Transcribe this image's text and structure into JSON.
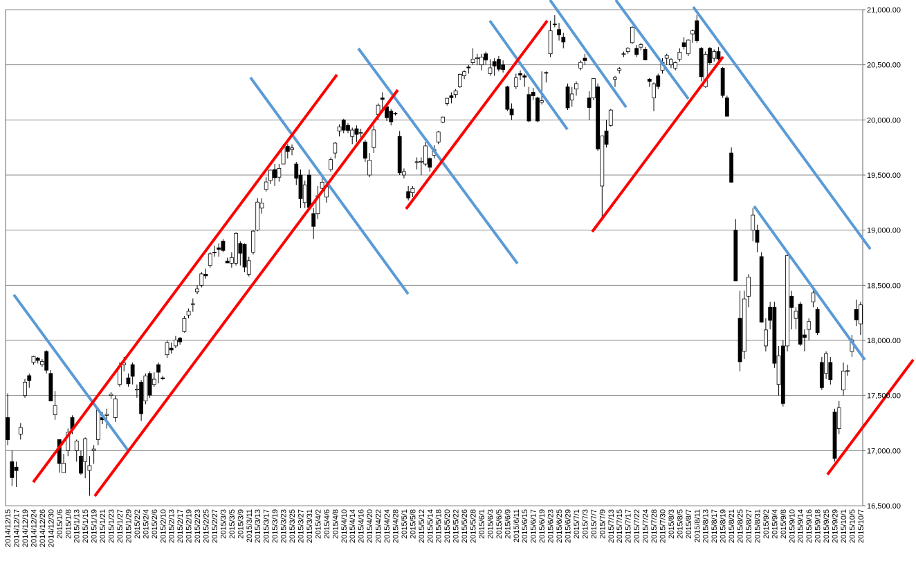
{
  "chart_data": {
    "type": "candlestick",
    "categories": [
      "2014/12/15",
      null,
      "2014/12/17",
      null,
      "2014/12/19",
      null,
      "2014/12/24",
      null,
      "2014/12/26",
      null,
      "2014/12/30",
      null,
      "2015/1/6",
      null,
      "2015/1/8",
      null,
      "2015/1/13",
      null,
      "2015/1/15",
      null,
      "2015/1/19",
      null,
      "2015/1/21",
      null,
      "2015/1/23",
      null,
      "2015/1/27",
      null,
      "2015/1/29",
      null,
      "2015/2/2",
      null,
      "2015/2/4",
      null,
      "2015/2/6",
      null,
      "2015/2/10",
      null,
      "2015/2/13",
      null,
      "2015/2/17",
      null,
      "2015/2/19",
      null,
      "2015/2/23",
      null,
      "2015/2/25",
      null,
      "2015/2/27",
      null,
      "2015/3/3",
      null,
      "2015/3/5",
      null,
      "2015/3/9",
      null,
      "2015/3/11",
      null,
      "2015/3/13",
      null,
      "2015/3/17",
      null,
      "2015/3/19",
      null,
      "2015/3/23",
      null,
      "2015/3/25",
      null,
      "2015/3/27",
      null,
      "2015/3/31",
      null,
      "2015/4/2",
      null,
      "2015/4/6",
      null,
      "2015/4/8",
      null,
      "2015/4/10",
      null,
      "2015/4/14",
      null,
      "2015/4/16",
      null,
      "2015/4/20",
      null,
      "2015/4/22",
      null,
      "2015/4/24",
      null,
      "2015/4/28",
      null,
      "2015/5/1",
      null,
      "2015/5/8",
      null,
      "2015/5/12",
      null,
      "2015/5/14",
      null,
      "2015/5/18",
      null,
      "2015/5/20",
      null,
      "2015/5/22",
      null,
      "2015/5/26",
      null,
      "2015/5/28",
      null,
      "2015/6/1",
      null,
      "2015/6/3",
      null,
      "2015/6/5",
      null,
      "2015/6/9",
      null,
      "2015/6/11",
      null,
      "2015/6/15",
      null,
      "2015/6/17",
      null,
      "2015/6/19",
      null,
      "2015/6/23",
      null,
      "2015/6/25",
      null,
      "2015/6/29",
      null,
      "2015/7/1",
      null,
      "2015/7/3",
      null,
      "2015/7/7",
      null,
      "2015/7/9",
      null,
      "2015/7/13",
      null,
      "2015/7/15",
      null,
      "2015/7/17",
      null,
      "2015/7/22",
      null,
      "2015/7/24",
      null,
      "2015/7/28",
      null,
      "2015/7/30",
      null,
      "2015/8/3",
      null,
      "2015/8/5",
      null,
      "2015/8/7",
      null,
      "2015/8/11",
      null,
      "2015/8/13",
      null,
      "2015/8/17",
      null,
      "2015/8/19",
      null,
      "2015/8/21",
      null,
      "2015/8/25",
      null,
      "2015/8/27",
      null,
      "2015/8/31",
      null,
      "2015/9/2",
      null,
      "2015/9/4",
      null,
      "2015/9/8",
      null,
      "2015/9/10",
      null,
      "2015/9/14",
      null,
      "2015/9/16",
      null,
      "2015/9/18",
      null,
      "2015/9/25",
      null,
      "2015/9/29",
      null,
      "2015/10/1",
      null,
      "2015/10/5",
      null,
      "2015/10/7"
    ],
    "open": [
      17300,
      16900,
      16850,
      17150,
      17500,
      17680,
      17800,
      17840,
      17780,
      17900,
      17700,
      17325,
      17100,
      16800,
      17000,
      17300,
      17000,
      16950,
      16900,
      16820,
      17000,
      17100,
      17300,
      17320,
      17500,
      17300,
      17600,
      17780,
      17660,
      17780,
      17550,
      17620,
      17450,
      17700,
      17600,
      17780,
      17660,
      17870,
      17930,
      17950,
      18020,
      18080,
      18230,
      18330,
      18440,
      18500,
      18600,
      18680,
      18800,
      18840,
      18900,
      18720,
      18700,
      18700,
      18880,
      18870,
      18600,
      18800,
      19000,
      19200,
      19370,
      19450,
      19550,
      19480,
      19600,
      19760,
      19730,
      19600,
      19500,
      19250,
      19500,
      19150,
      19150,
      19380,
      19300,
      19550,
      19700,
      19900,
      20000,
      19950,
      19850,
      19920,
      19880,
      19800,
      19500,
      19750,
      20050,
      20200,
      20120,
      20080,
      20060,
      19850,
      19500,
      19350,
      19340,
      19620,
      19620,
      19600,
      19650,
      19680,
      19800,
      19980,
      20150,
      20220,
      20230,
      20300,
      20400,
      20480,
      20520,
      20560,
      20500,
      20600,
      20420,
      20530,
      20550,
      20500,
      20300,
      20100,
      20300,
      20420,
      20400,
      20230,
      20250,
      20200,
      20160,
      20430,
      20600,
      20870,
      20820,
      20750,
      20300,
      20180,
      20280,
      20470,
      20560,
      20200,
      20200,
      20300,
      19400,
      19900,
      19950,
      20370,
      20450,
      20600,
      20620,
      20700,
      20650,
      20660,
      20640,
      20370,
      20200,
      20400,
      20450,
      20560,
      20500,
      20470,
      20550,
      20700,
      20600,
      20780,
      20900,
      20650,
      20300,
      20650,
      20560,
      20620,
      20470,
      20200,
      19700,
      19000,
      18200,
      17900,
      18400,
      19000,
      19000,
      18760,
      17950,
      18300,
      18300,
      17600,
      17950,
      17950,
      18400,
      18200,
      18330,
      18050,
      18100,
      18350,
      18280,
      17800,
      17700,
      17800,
      17350,
      17200,
      17550,
      17720,
      17900,
      18280,
      18150
    ],
    "high": [
      17520,
      17000,
      16900,
      17250,
      17650,
      17700,
      17860,
      17850,
      17830,
      17910,
      17730,
      17540,
      17100,
      16970,
      17200,
      17320,
      17100,
      17000,
      17120,
      16950,
      17050,
      17380,
      17350,
      17380,
      17530,
      17500,
      17800,
      17850,
      17700,
      17800,
      17600,
      17640,
      17700,
      17720,
      17710,
      17800,
      17680,
      18000,
      17980,
      18040,
      18030,
      18220,
      18290,
      18380,
      18500,
      18620,
      18650,
      18800,
      18860,
      18880,
      18920,
      18750,
      18800,
      18980,
      18900,
      18880,
      18760,
      19000,
      19290,
      19290,
      19480,
      19550,
      19600,
      19600,
      19780,
      19780,
      19778,
      19620,
      19550,
      19450,
      19550,
      19200,
      19400,
      19470,
      19420,
      19660,
      19800,
      19960,
      20010,
      19970,
      19930,
      19950,
      19920,
      19820,
      19700,
      19950,
      20150,
      20250,
      20150,
      20100,
      20070,
      19900,
      19560,
      19400,
      19400,
      19660,
      19660,
      19800,
      19660,
      19770,
      19900,
      20030,
      20200,
      20250,
      20280,
      20420,
      20450,
      20500,
      20650,
      20600,
      20600,
      20620,
      20550,
      20560,
      20580,
      20540,
      20310,
      20150,
      20420,
      20450,
      20420,
      20300,
      20290,
      20210,
      20440,
      20440,
      20900,
      20950,
      20880,
      20790,
      20330,
      20300,
      20350,
      20540,
      20600,
      20260,
      20380,
      20330,
      19860,
      20000,
      20100,
      20400,
      20480,
      20620,
      20660,
      20850,
      20680,
      20700,
      20660,
      20380,
      20340,
      20420,
      20560,
      20600,
      20560,
      20530,
      20650,
      20750,
      20730,
      20820,
      20950,
      20660,
      20620,
      20660,
      20640,
      20660,
      20480,
      20220,
      19750,
      19100,
      18450,
      18450,
      18600,
      19200,
      19050,
      18800,
      18200,
      18350,
      18350,
      17950,
      18000,
      18780,
      18450,
      18300,
      18350,
      18100,
      18200,
      18450,
      18300,
      17850,
      17900,
      17850,
      17380,
      17450,
      17800,
      17780,
      18050,
      18370,
      18350
    ],
    "low": [
      17050,
      16680,
      16670,
      17100,
      17480,
      17570,
      17780,
      17790,
      17760,
      17700,
      17450,
      17280,
      16800,
      16800,
      16950,
      17150,
      16900,
      16780,
      16750,
      16590,
      16880,
      17050,
      17240,
      17200,
      17470,
      17260,
      17580,
      17720,
      17580,
      17600,
      17480,
      17270,
      17420,
      17480,
      17580,
      17610,
      17640,
      17840,
      17880,
      17930,
      17960,
      18070,
      18200,
      18260,
      18420,
      18480,
      18560,
      18660,
      18760,
      18760,
      18800,
      18700,
      18660,
      18680,
      18680,
      18620,
      18580,
      18780,
      18990,
      19150,
      19350,
      19420,
      19400,
      19440,
      19600,
      19650,
      19680,
      19410,
      19200,
      19200,
      19206,
      18920,
      19100,
      19350,
      19250,
      19530,
      19650,
      19850,
      19880,
      19880,
      19780,
      19800,
      19830,
      19620,
      19480,
      19700,
      20000,
      20100,
      19990,
      19950,
      20040,
      19500,
      19470,
      19270,
      19300,
      19550,
      19500,
      19580,
      19530,
      19650,
      19780,
      19970,
      20130,
      20150,
      20200,
      20290,
      20370,
      20420,
      20500,
      20500,
      20450,
      20500,
      20400,
      20400,
      20440,
      20430,
      20080,
      20000,
      20280,
      20360,
      20300,
      19980,
      20180,
      19980,
      20140,
      20340,
      20570,
      20840,
      20720,
      20650,
      20090,
      20120,
      20220,
      20450,
      20500,
      20000,
      20180,
      19720,
      19120,
      19750,
      19940,
      20300,
      20420,
      20570,
      20600,
      20690,
      20570,
      20630,
      20540,
      20300,
      20080,
      20280,
      20420,
      20500,
      20470,
      20450,
      20530,
      20640,
      20580,
      20700,
      20700,
      20350,
      20290,
      20500,
      20530,
      20540,
      20200,
      20030,
      19430,
      18540,
      17720,
      17830,
      18300,
      18900,
      18800,
      18160,
      17900,
      18100,
      17750,
      17500,
      17400,
      17900,
      18100,
      18100,
      17950,
      17900,
      18000,
      18300,
      18050,
      17550,
      17650,
      17600,
      16900,
      17150,
      17500,
      17680,
      17850,
      18130,
      18050
    ],
    "close": [
      17099,
      16755,
      16819,
      17210,
      17621,
      17635,
      17854,
      17818,
      17808,
      17729,
      17450,
      17408,
      16883,
      16885,
      17167,
      17197,
      17087,
      16795,
      17108,
      16864,
      17014,
      17366,
      17280,
      17329,
      17511,
      17468,
      17768,
      17795,
      17606,
      17674,
      17558,
      17335,
      17678,
      17504,
      17648,
      17711,
      17652,
      17979,
      17913,
      18004,
      17987,
      18199,
      18264,
      18332,
      18466,
      18603,
      18585,
      18785,
      18797,
      18826,
      18815,
      18703,
      18751,
      18971,
      18790,
      18665,
      18723,
      18991,
      19254,
      19246,
      19437,
      19544,
      19476,
      19560,
      19754,
      19713,
      19746,
      19471,
      19285,
      19411,
      19206,
      19034,
      19312,
      19435,
      19397,
      19640,
      19789,
      19937,
      19907,
      19905,
      19908,
      19869,
      19885,
      19652,
      19634,
      19909,
      20133,
      20187,
      20020,
      19983,
      20058,
      19520,
      19531,
      19292,
      19379,
      19620,
      19624,
      19764,
      19570,
      19732,
      19890,
      20026,
      20196,
      20202,
      20264,
      20413,
      20437,
      20472,
      20551,
      20563,
      20569,
      20543,
      20473,
      20488,
      20460,
      20457,
      20096,
      20046,
      20382,
      20407,
      20387,
      19990,
      20219,
      19990,
      20174,
      20428,
      20809,
      20868,
      20771,
      20706,
      20109,
      20235,
      20329,
      20522,
      20539,
      20112,
      20376,
      19737,
      19855,
      19779,
      20089,
      20385,
      20463,
      20600,
      20650,
      20841,
      20593,
      20683,
      20544,
      20350,
      20328,
      20303,
      20522,
      20585,
      20548,
      20520,
      20614,
      20664,
      20724,
      20808,
      20720,
      20392,
      20595,
      20519,
      20620,
      20554,
      20222,
      20033,
      19435,
      18540,
      17806,
      18376,
      18574,
      19136,
      18890,
      18165,
      18095,
      18182,
      17792,
      17860,
      17427,
      18770,
      18299,
      18264,
      17965,
      18026,
      18171,
      18432,
      18070,
      17571,
      17880,
      17645,
      16930,
      17388,
      17722,
      17725,
      18005,
      18186,
      18322
    ],
    "up_color": "#ffffff",
    "down_color": "#000000",
    "ylim": [
      16500,
      21000
    ],
    "yticks": [
      {
        "value": 16500,
        "label": "16,500.00"
      },
      {
        "value": 17000,
        "label": "17,000.00"
      },
      {
        "value": 17500,
        "label": "17,500.00"
      },
      {
        "value": 18000,
        "label": "18,000.00"
      },
      {
        "value": 18500,
        "label": "18,500.00"
      },
      {
        "value": 19000,
        "label": "19,000.00"
      },
      {
        "value": 19500,
        "label": "19,500.00"
      },
      {
        "value": 20000,
        "label": "20,000.00"
      },
      {
        "value": 20500,
        "label": "20,500.00"
      },
      {
        "value": 21000,
        "label": "21,000.00"
      }
    ],
    "grid": true
  }
}
